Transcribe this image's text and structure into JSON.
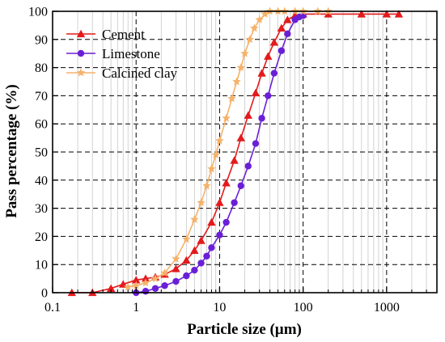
{
  "chart_data": {
    "type": "line",
    "xlabel": "Particle size (µm)",
    "ylabel": "Pass percentage (%)",
    "xscale": "log",
    "xlim": [
      0.1,
      4000
    ],
    "ylim": [
      0,
      100
    ],
    "x_ticks": [
      0.1,
      1,
      10,
      100,
      1000
    ],
    "x_tick_labels": [
      "0.1",
      "1",
      "10",
      "100",
      "1000"
    ],
    "y_ticks": [
      0,
      10,
      20,
      30,
      40,
      50,
      60,
      70,
      80,
      90,
      100
    ],
    "y_tick_labels": [
      "0",
      "10",
      "20",
      "30",
      "40",
      "50",
      "60",
      "70",
      "80",
      "90",
      "100"
    ],
    "grid": true,
    "legend_position": "top-left",
    "series": [
      {
        "name": "Cement",
        "color": "#e31a1c",
        "marker": "triangle",
        "x": [
          0.17,
          0.3,
          0.5,
          0.7,
          1.0,
          1.3,
          1.7,
          2.2,
          3.0,
          4.0,
          5.0,
          6.0,
          8.0,
          10.0,
          12.0,
          15.0,
          18.0,
          22.0,
          27.0,
          32.0,
          38.0,
          45.0,
          55.0,
          65.0,
          80.0,
          100.0,
          200.0,
          500.0,
          1000.0,
          1400.0
        ],
        "y": [
          0,
          0,
          1.5,
          3,
          4.5,
          5,
          5.5,
          6.5,
          8.5,
          11.5,
          15,
          18.5,
          25,
          32,
          39,
          47,
          55,
          63,
          71,
          78,
          84,
          89,
          94,
          97,
          98.5,
          99,
          99,
          99,
          99,
          99
        ]
      },
      {
        "name": "Limestone",
        "color": "#6a1fd6",
        "marker": "circle",
        "x": [
          1.0,
          1.3,
          1.7,
          2.2,
          3.0,
          4.0,
          5.0,
          6.0,
          7.0,
          8.0,
          10.0,
          12.0,
          15.0,
          18.0,
          22.0,
          27.0,
          32.0,
          38.0,
          45.0,
          55.0,
          65.0,
          80.0,
          90.0,
          100.0
        ],
        "y": [
          0,
          0.5,
          1.5,
          2.5,
          4,
          6,
          8,
          10.5,
          13,
          16,
          20.5,
          25,
          32,
          38,
          45,
          53,
          62,
          70,
          78,
          86,
          92,
          97,
          98,
          98.5
        ]
      },
      {
        "name": "Calcined clay",
        "color": "#f5b26a",
        "marker": "star",
        "x": [
          0.8,
          1.0,
          1.3,
          1.7,
          2.2,
          3.0,
          4.0,
          5.0,
          6.0,
          7.0,
          8.0,
          9.0,
          10.0,
          12.0,
          14.0,
          16.0,
          18.0,
          20.0,
          23.0,
          26.0,
          30.0,
          35.0,
          40.0,
          50.0,
          60.0,
          80.0,
          100.0,
          150.0,
          200.0
        ],
        "y": [
          2,
          2.5,
          3.5,
          5,
          7,
          12,
          19,
          26,
          32,
          38,
          44,
          49,
          54,
          62,
          69,
          75,
          80,
          85,
          90,
          94,
          97,
          99,
          100,
          100,
          100,
          100,
          100,
          100,
          100
        ]
      }
    ]
  }
}
